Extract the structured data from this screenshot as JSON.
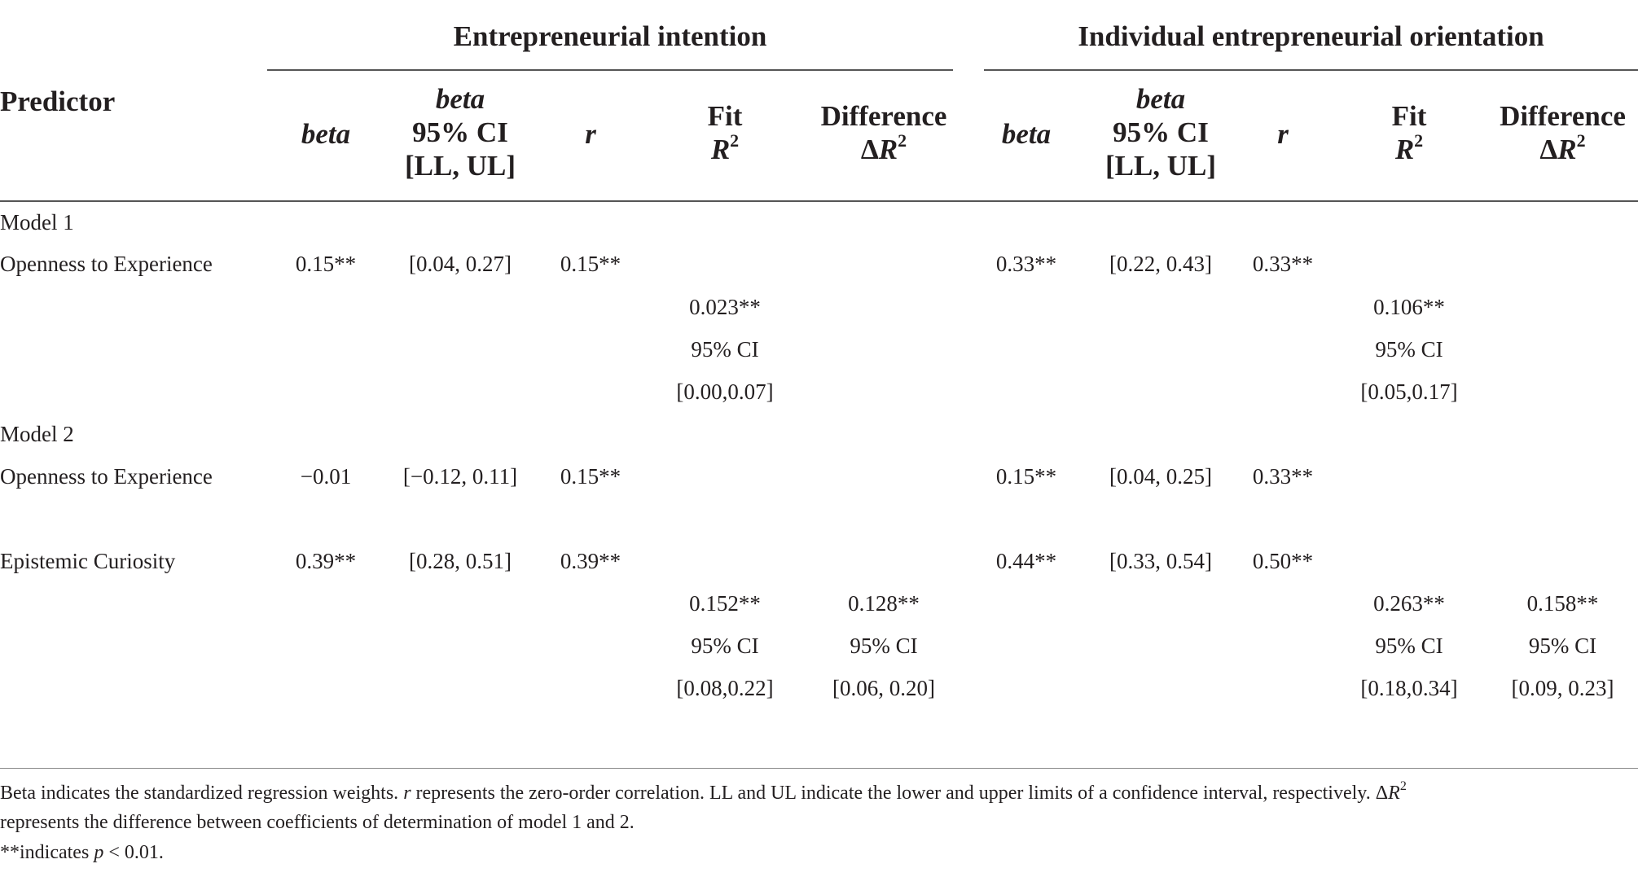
{
  "groups": {
    "ei": "Entrepreneurial intention",
    "ieo": "Individual entrepreneurial orientation"
  },
  "header": {
    "predictor": "Predictor",
    "beta": "beta",
    "ci_line1": "beta",
    "ci_line2": "95% CI",
    "ci_line3": "[LL, UL]",
    "r": "r",
    "fit_line1": "Fit",
    "fit_R": "R",
    "fit_sup": "2",
    "diff_line1": "Difference",
    "diff_delta": "Δ",
    "diff_R": "R",
    "diff_sup": "2"
  },
  "rows": {
    "model1": "Model 1",
    "model2": "Model 2",
    "m1_openness": {
      "label": "Openness to Experience",
      "ei_beta": "0.15**",
      "ei_ci": "[0.04, 0.27]",
      "ei_r": "0.15**",
      "ieo_beta": "0.33**",
      "ieo_ci": "[0.22, 0.43]",
      "ieo_r": "0.33**"
    },
    "m1_fit": {
      "ei_val": "0.023**",
      "ei_ci_label": "95% CI",
      "ei_ci": "[0.00,0.07]",
      "ieo_val": "0.106**",
      "ieo_ci_label": "95% CI",
      "ieo_ci": "[0.05,0.17]"
    },
    "m2_openness": {
      "label": "Openness to Experience",
      "ei_beta": "−0.01",
      "ei_ci": "[−0.12, 0.11]",
      "ei_r": "0.15**",
      "ieo_beta": "0.15**",
      "ieo_ci": "[0.04, 0.25]",
      "ieo_r": "0.33**"
    },
    "m2_curiosity": {
      "label": "Epistemic Curiosity",
      "ei_beta": "0.39**",
      "ei_ci": "[0.28, 0.51]",
      "ei_r": "0.39**",
      "ieo_beta": "0.44**",
      "ieo_ci": "[0.33, 0.54]",
      "ieo_r": "0.50**"
    },
    "m2_fit": {
      "ei_fit": "0.152**",
      "ei_fit_ci_label": "95% CI",
      "ei_fit_ci": "[0.08,0.22]",
      "ei_diff": "0.128**",
      "ei_diff_ci_label": "95% CI",
      "ei_diff_ci": "[0.06, 0.20]",
      "ieo_fit": "0.263**",
      "ieo_fit_ci_label": "95% CI",
      "ieo_fit_ci": "[0.18,0.34]",
      "ieo_diff": "0.158**",
      "ieo_diff_ci_label": "95% CI",
      "ieo_diff_ci": "[0.09, 0.23]"
    }
  },
  "notes": {
    "line1_a": "Beta indicates the standardized regression weights. ",
    "line1_r": "r",
    "line1_b": " represents the zero-order correlation. LL and UL indicate the lower and upper limits of a confidence interval, respectively. Δ",
    "line1_R": "R",
    "line1_sup": "2",
    "line2": "represents the difference between coefficients of determination of model 1 and 2.",
    "line3_a": "**indicates ",
    "line3_p": "p",
    "line3_b": " < 0.01."
  }
}
